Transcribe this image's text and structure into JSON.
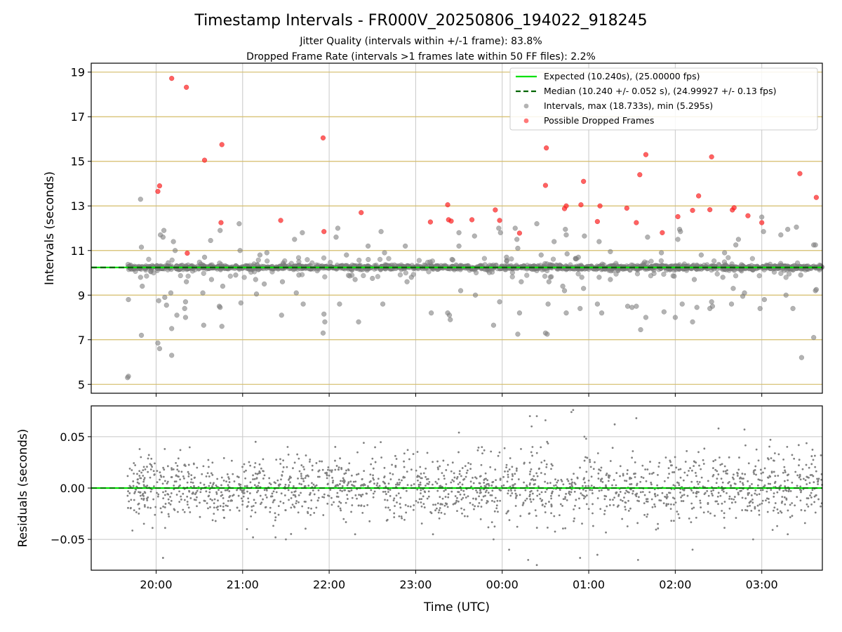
{
  "chart_data": [
    {
      "type": "scatter",
      "panel": "intervals",
      "title": "Timestamp Intervals - FR000V_20250806_194022_918245",
      "subtitle_1": "Jitter Quality (intervals within +/-1 frame): 83.8%",
      "subtitle_2": "Dropped Frame Rate (intervals >1 frames late within 50 FF files): 2.2%",
      "xlabel": "",
      "ylabel": "Intervals (seconds)",
      "xlim_hours": [
        19.25,
        27.7
      ],
      "ylim": [
        4.6,
        19.4
      ],
      "y_ticks": [
        5,
        7,
        9,
        11,
        13,
        15,
        17,
        19
      ],
      "y_tick_labels": [
        "5",
        "7",
        "9",
        "11",
        "13",
        "15",
        "17",
        "19"
      ],
      "grid": true,
      "legend_position": "upper-right",
      "expected_interval": 10.24,
      "median_interval": 10.24,
      "legend": {
        "expected": "Expected (10.240s), (25.00000 fps)",
        "median": "Median (10.240 +/- 0.052 s), (24.99927 +/- 0.13 fps)",
        "intervals": "Intervals, max (18.733s), min (5.295s)",
        "dropped": "Possible Dropped Frames"
      },
      "dropped_frames": [
        [
          20.02,
          13.65
        ],
        [
          20.04,
          13.9
        ],
        [
          20.18,
          18.72
        ],
        [
          20.35,
          18.32
        ],
        [
          20.36,
          10.88
        ],
        [
          20.56,
          15.05
        ],
        [
          20.75,
          12.25
        ],
        [
          20.76,
          15.75
        ],
        [
          21.44,
          12.35
        ],
        [
          21.93,
          16.05
        ],
        [
          21.94,
          11.85
        ],
        [
          22.37,
          12.7
        ],
        [
          23.17,
          12.28
        ],
        [
          23.37,
          13.05
        ],
        [
          23.38,
          12.38
        ],
        [
          23.41,
          12.32
        ],
        [
          23.65,
          12.38
        ],
        [
          23.92,
          12.82
        ],
        [
          23.97,
          12.35
        ],
        [
          24.2,
          11.78
        ],
        [
          24.5,
          13.92
        ],
        [
          24.51,
          15.6
        ],
        [
          24.72,
          12.88
        ],
        [
          24.74,
          13.0
        ],
        [
          24.91,
          13.05
        ],
        [
          24.94,
          14.1
        ],
        [
          25.1,
          12.3
        ],
        [
          25.13,
          13.0
        ],
        [
          25.44,
          12.9
        ],
        [
          25.55,
          12.25
        ],
        [
          25.59,
          14.4
        ],
        [
          25.66,
          15.3
        ],
        [
          25.85,
          11.8
        ],
        [
          26.03,
          12.52
        ],
        [
          26.2,
          12.8
        ],
        [
          26.27,
          13.45
        ],
        [
          26.4,
          12.83
        ],
        [
          26.42,
          15.2
        ],
        [
          26.66,
          12.82
        ],
        [
          26.68,
          12.92
        ],
        [
          26.84,
          12.56
        ],
        [
          27.0,
          12.25
        ],
        [
          27.44,
          14.45
        ],
        [
          27.63,
          13.38
        ]
      ],
      "interval_points": [
        [
          19.67,
          5.3
        ],
        [
          19.68,
          5.36
        ],
        [
          19.68,
          8.8
        ],
        [
          19.82,
          13.3
        ],
        [
          19.83,
          11.15
        ],
        [
          19.84,
          9.4
        ],
        [
          19.83,
          7.2
        ],
        [
          19.82,
          9.8
        ],
        [
          20.02,
          6.85
        ],
        [
          20.04,
          6.6
        ],
        [
          20.03,
          8.75
        ],
        [
          20.05,
          11.7
        ],
        [
          20.08,
          11.6
        ],
        [
          20.09,
          11.9
        ],
        [
          20.1,
          8.9
        ],
        [
          20.12,
          8.55
        ],
        [
          20.14,
          10.45
        ],
        [
          20.18,
          6.3
        ],
        [
          20.18,
          7.5
        ],
        [
          20.17,
          9.1
        ],
        [
          20.2,
          11.4
        ],
        [
          20.22,
          11.0
        ],
        [
          20.24,
          8.1
        ],
        [
          20.33,
          8.4
        ],
        [
          20.34,
          8.0
        ],
        [
          20.34,
          8.7
        ],
        [
          20.35,
          9.6
        ],
        [
          20.54,
          9.1
        ],
        [
          20.55,
          7.65
        ],
        [
          20.56,
          10.7
        ],
        [
          20.63,
          11.45
        ],
        [
          20.64,
          9.7
        ],
        [
          20.73,
          8.5
        ],
        [
          20.74,
          8.45
        ],
        [
          20.74,
          11.9
        ],
        [
          20.76,
          7.6
        ],
        [
          20.77,
          9.4
        ],
        [
          20.92,
          9.9
        ],
        [
          20.96,
          12.2
        ],
        [
          20.98,
          8.65
        ],
        [
          20.97,
          11.0
        ],
        [
          21.15,
          9.7
        ],
        [
          21.16,
          9.05
        ],
        [
          21.2,
          10.8
        ],
        [
          21.25,
          9.5
        ],
        [
          21.28,
          10.9
        ],
        [
          21.45,
          8.1
        ],
        [
          21.46,
          9.6
        ],
        [
          21.6,
          11.5
        ],
        [
          21.62,
          9.1
        ],
        [
          21.65,
          9.9
        ],
        [
          21.69,
          11.8
        ],
        [
          21.7,
          8.6
        ],
        [
          21.93,
          7.3
        ],
        [
          21.94,
          8.15
        ],
        [
          21.95,
          7.8
        ],
        [
          22.08,
          11.6
        ],
        [
          22.1,
          12.0
        ],
        [
          22.12,
          8.6
        ],
        [
          22.2,
          10.8
        ],
        [
          22.3,
          9.7
        ],
        [
          22.34,
          7.8
        ],
        [
          22.45,
          11.2
        ],
        [
          22.5,
          9.75
        ],
        [
          22.6,
          11.85
        ],
        [
          22.62,
          8.6
        ],
        [
          22.64,
          10.9
        ],
        [
          22.88,
          11.2
        ],
        [
          22.9,
          9.6
        ],
        [
          22.95,
          9.8
        ],
        [
          23.18,
          8.2
        ],
        [
          23.37,
          8.2
        ],
        [
          23.4,
          7.9
        ],
        [
          23.39,
          8.1
        ],
        [
          23.42,
          10.6
        ],
        [
          23.5,
          11.8
        ],
        [
          23.52,
          9.2
        ],
        [
          23.5,
          11.2
        ],
        [
          23.68,
          11.65
        ],
        [
          23.69,
          9.0
        ],
        [
          23.9,
          7.65
        ],
        [
          23.97,
          8.7
        ],
        [
          23.96,
          12.0
        ],
        [
          23.98,
          11.8
        ],
        [
          24.05,
          10.7
        ],
        [
          24.15,
          12.0
        ],
        [
          24.17,
          11.5
        ],
        [
          24.18,
          11.1
        ],
        [
          24.2,
          8.2
        ],
        [
          24.18,
          7.25
        ],
        [
          24.22,
          9.6
        ],
        [
          24.4,
          12.2
        ],
        [
          24.45,
          10.8
        ],
        [
          24.5,
          7.3
        ],
        [
          24.52,
          7.25
        ],
        [
          24.53,
          8.6
        ],
        [
          24.54,
          9.6
        ],
        [
          24.6,
          11.4
        ],
        [
          24.7,
          9.4
        ],
        [
          24.72,
          9.2
        ],
        [
          24.74,
          8.2
        ],
        [
          24.73,
          11.95
        ],
        [
          24.74,
          11.7
        ],
        [
          24.75,
          10.85
        ],
        [
          24.88,
          10.7
        ],
        [
          24.9,
          8.4
        ],
        [
          24.92,
          9.8
        ],
        [
          24.94,
          9.3
        ],
        [
          24.95,
          11.65
        ],
        [
          25.1,
          8.6
        ],
        [
          25.12,
          9.8
        ],
        [
          25.12,
          11.4
        ],
        [
          25.15,
          8.2
        ],
        [
          25.25,
          9.7
        ],
        [
          25.25,
          10.95
        ],
        [
          25.45,
          8.5
        ],
        [
          25.5,
          8.45
        ],
        [
          25.55,
          8.5
        ],
        [
          25.6,
          7.45
        ],
        [
          25.66,
          8.0
        ],
        [
          25.68,
          11.6
        ],
        [
          25.75,
          10.3
        ],
        [
          25.84,
          10.9
        ],
        [
          25.87,
          8.25
        ],
        [
          26.0,
          8.0
        ],
        [
          26.03,
          11.5
        ],
        [
          26.05,
          11.95
        ],
        [
          26.06,
          11.85
        ],
        [
          26.08,
          8.6
        ],
        [
          26.2,
          7.8
        ],
        [
          26.22,
          9.7
        ],
        [
          26.25,
          8.45
        ],
        [
          26.3,
          10.8
        ],
        [
          26.4,
          8.4
        ],
        [
          26.42,
          8.7
        ],
        [
          26.43,
          8.5
        ],
        [
          26.55,
          9.8
        ],
        [
          26.57,
          10.9
        ],
        [
          26.65,
          8.6
        ],
        [
          26.67,
          9.3
        ],
        [
          26.7,
          11.25
        ],
        [
          26.73,
          11.5
        ],
        [
          26.78,
          8.95
        ],
        [
          26.8,
          9.1
        ],
        [
          26.98,
          8.4
        ],
        [
          27.0,
          12.5
        ],
        [
          27.02,
          11.85
        ],
        [
          27.03,
          8.8
        ],
        [
          27.22,
          11.7
        ],
        [
          27.28,
          9.0
        ],
        [
          27.3,
          11.95
        ],
        [
          27.36,
          8.4
        ],
        [
          27.4,
          12.05
        ],
        [
          27.45,
          9.9
        ],
        [
          27.46,
          6.2
        ],
        [
          27.6,
          7.1
        ],
        [
          27.62,
          9.2
        ],
        [
          27.63,
          9.25
        ],
        [
          27.6,
          11.25
        ],
        [
          27.62,
          11.25
        ]
      ],
      "core_band": {
        "x_start": 19.67,
        "x_end": 27.7,
        "center": 10.24,
        "jitter": 0.05,
        "count": 1450
      },
      "spread_band": {
        "x_start": 19.67,
        "x_end": 27.7,
        "center": 10.24,
        "spread": 0.45,
        "count": 150
      },
      "colors": {
        "expected": "#00e000",
        "median": "#006400",
        "intervals": "#808080",
        "dropped": "#ff2020",
        "h_grid": "#d4bd6a",
        "v_grid": "#c8c8c8"
      }
    },
    {
      "type": "scatter",
      "panel": "residuals",
      "xlabel": "Time (UTC)",
      "ylabel": "Residuals (seconds)",
      "xlim_hours": [
        19.25,
        27.7
      ],
      "ylim": [
        -0.08,
        0.08
      ],
      "y_ticks": [
        0.05,
        0.0,
        -0.05
      ],
      "y_tick_labels": [
        "0.05",
        "0.00",
        "−0.05"
      ],
      "x_ticks_hours": [
        20,
        21,
        22,
        23,
        24,
        25,
        26,
        27
      ],
      "x_tick_labels": [
        "20:00",
        "21:00",
        "22:00",
        "23:00",
        "00:00",
        "01:00",
        "02:00",
        "03:00"
      ],
      "grid": true,
      "residual_band": {
        "x_start": 19.67,
        "x_end": 27.7,
        "count": 1800,
        "sigma": 0.016
      },
      "residual_outliers": [
        [
          20.08,
          -0.068
        ],
        [
          20.1,
          0.038
        ],
        [
          20.28,
          0.037
        ],
        [
          21.05,
          -0.04
        ],
        [
          21.12,
          -0.048
        ],
        [
          21.15,
          0.045
        ],
        [
          21.38,
          -0.048
        ],
        [
          21.5,
          -0.05
        ],
        [
          21.52,
          0.04
        ],
        [
          22.3,
          -0.045
        ],
        [
          22.4,
          0.044
        ],
        [
          23.2,
          -0.045
        ],
        [
          23.5,
          0.054
        ],
        [
          23.9,
          -0.05
        ],
        [
          24.08,
          -0.06
        ],
        [
          24.3,
          -0.07
        ],
        [
          24.32,
          0.07
        ],
        [
          24.34,
          0.06
        ],
        [
          24.35,
          0.04
        ],
        [
          24.4,
          0.07
        ],
        [
          24.4,
          -0.075
        ],
        [
          24.5,
          0.066
        ],
        [
          24.8,
          0.074
        ],
        [
          24.82,
          0.076
        ],
        [
          24.9,
          -0.068
        ],
        [
          24.95,
          0.05
        ],
        [
          24.97,
          0.048
        ],
        [
          25.1,
          -0.065
        ],
        [
          25.3,
          0.062
        ],
        [
          25.55,
          0.068
        ],
        [
          25.57,
          -0.07
        ],
        [
          26.2,
          -0.06
        ],
        [
          26.5,
          0.058
        ],
        [
          26.8,
          0.057
        ],
        [
          26.9,
          -0.05
        ],
        [
          27.1,
          0.047
        ],
        [
          27.3,
          -0.045
        ]
      ],
      "colors": {
        "residuals": "#808080",
        "zero_expected": "#00e000",
        "zero_median": "#006400",
        "grid": "#c8c8c8"
      }
    }
  ]
}
